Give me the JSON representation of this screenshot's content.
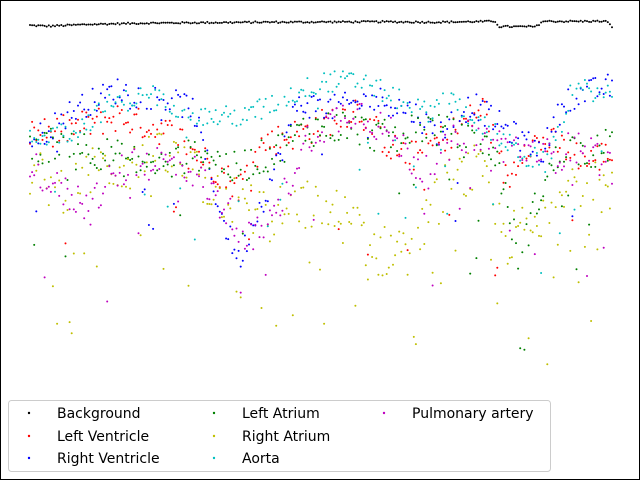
{
  "chart_data": {
    "type": "scatter",
    "title": "",
    "xlabel": "",
    "ylabel": "",
    "xlim": [
      0,
      1000
    ],
    "ylim": [
      0,
      1
    ],
    "grid": false,
    "axes_visible": false,
    "legend_placement": "lower-left",
    "legend_columns": 3,
    "series": [
      {
        "name": "Background",
        "color": "#000000",
        "profile": [
          [
            0,
            0.988
          ],
          [
            30,
            0.986
          ],
          [
            100,
            0.99
          ],
          [
            200,
            0.993
          ],
          [
            400,
            0.995
          ],
          [
            600,
            0.996
          ],
          [
            700,
            0.995
          ],
          [
            800,
            0.997
          ],
          [
            805,
            0.985
          ],
          [
            870,
            0.985
          ],
          [
            880,
            0.997
          ],
          [
            990,
            0.997
          ],
          [
            1000,
            0.985
          ]
        ],
        "noise": 0.002,
        "dropout": 0.0
      },
      {
        "name": "Left Ventricle",
        "color": "#ff0000",
        "profile": [
          [
            0,
            0.74
          ],
          [
            60,
            0.75
          ],
          [
            150,
            0.78
          ],
          [
            250,
            0.74
          ],
          [
            320,
            0.66
          ],
          [
            360,
            0.62
          ],
          [
            400,
            0.72
          ],
          [
            480,
            0.75
          ],
          [
            560,
            0.8
          ],
          [
            620,
            0.71
          ],
          [
            660,
            0.69
          ],
          [
            720,
            0.74
          ],
          [
            780,
            0.8
          ],
          [
            820,
            0.63
          ],
          [
            850,
            0.72
          ],
          [
            900,
            0.72
          ],
          [
            960,
            0.68
          ],
          [
            1000,
            0.7
          ]
        ],
        "noise": 0.035,
        "dropout": 0.05
      },
      {
        "name": "Right Ventricle",
        "color": "#0000ff",
        "profile": [
          [
            0,
            0.72
          ],
          [
            80,
            0.8
          ],
          [
            150,
            0.84
          ],
          [
            230,
            0.82
          ],
          [
            280,
            0.8
          ],
          [
            330,
            0.55
          ],
          [
            360,
            0.45
          ],
          [
            380,
            0.53
          ],
          [
            410,
            0.62
          ],
          [
            460,
            0.81
          ],
          [
            520,
            0.8
          ],
          [
            600,
            0.82
          ],
          [
            660,
            0.79
          ],
          [
            700,
            0.74
          ],
          [
            760,
            0.81
          ],
          [
            820,
            0.75
          ],
          [
            880,
            0.7
          ],
          [
            920,
            0.82
          ],
          [
            970,
            0.84
          ],
          [
            1000,
            0.85
          ]
        ],
        "noise": 0.03,
        "dropout": 0.06
      },
      {
        "name": "Left Atrium",
        "color": "#008000",
        "profile": [
          [
            0,
            0.7
          ],
          [
            60,
            0.73
          ],
          [
            120,
            0.7
          ],
          [
            170,
            0.68
          ],
          [
            230,
            0.67
          ],
          [
            300,
            0.7
          ],
          [
            350,
            0.66
          ],
          [
            420,
            0.7
          ],
          [
            470,
            0.75
          ],
          [
            540,
            0.76
          ],
          [
            620,
            0.73
          ],
          [
            680,
            0.76
          ],
          [
            760,
            0.72
          ],
          [
            800,
            0.7
          ],
          [
            840,
            0.46
          ],
          [
            880,
            0.62
          ],
          [
            920,
            0.72
          ],
          [
            960,
            0.69
          ],
          [
            1000,
            0.72
          ]
        ],
        "noise": 0.04,
        "dropout": 0.08
      },
      {
        "name": "Right Atrium",
        "color": "#bfbf00",
        "profile": [
          [
            0,
            0.65
          ],
          [
            60,
            0.62
          ],
          [
            120,
            0.66
          ],
          [
            180,
            0.67
          ],
          [
            240,
            0.69
          ],
          [
            300,
            0.63
          ],
          [
            360,
            0.58
          ],
          [
            420,
            0.56
          ],
          [
            480,
            0.58
          ],
          [
            540,
            0.55
          ],
          [
            600,
            0.47
          ],
          [
            660,
            0.5
          ],
          [
            720,
            0.63
          ],
          [
            770,
            0.66
          ],
          [
            820,
            0.5
          ],
          [
            880,
            0.55
          ],
          [
            920,
            0.64
          ],
          [
            970,
            0.62
          ],
          [
            1000,
            0.6
          ]
        ],
        "noise": 0.06,
        "dropout": 0.15
      },
      {
        "name": "Aorta",
        "color": "#00bfbf",
        "profile": [
          [
            0,
            0.73
          ],
          [
            80,
            0.75
          ],
          [
            140,
            0.81
          ],
          [
            210,
            0.83
          ],
          [
            260,
            0.8
          ],
          [
            300,
            0.78
          ],
          [
            360,
            0.78
          ],
          [
            420,
            0.81
          ],
          [
            500,
            0.86
          ],
          [
            560,
            0.86
          ],
          [
            620,
            0.83
          ],
          [
            680,
            0.79
          ],
          [
            720,
            0.82
          ],
          [
            800,
            0.74
          ],
          [
            860,
            0.68
          ],
          [
            900,
            0.71
          ],
          [
            930,
            0.84
          ],
          [
            970,
            0.84
          ],
          [
            1000,
            0.83
          ]
        ],
        "noise": 0.025,
        "dropout": 0.15
      },
      {
        "name": "Pulmonary artery",
        "color": "#bf00bf",
        "profile": [
          [
            0,
            0.68
          ],
          [
            40,
            0.62
          ],
          [
            100,
            0.58
          ],
          [
            160,
            0.66
          ],
          [
            220,
            0.68
          ],
          [
            280,
            0.66
          ],
          [
            330,
            0.58
          ],
          [
            380,
            0.5
          ],
          [
            420,
            0.55
          ],
          [
            480,
            0.74
          ],
          [
            560,
            0.8
          ],
          [
            620,
            0.74
          ],
          [
            680,
            0.65
          ],
          [
            740,
            0.74
          ],
          [
            800,
            0.72
          ],
          [
            860,
            0.7
          ],
          [
            900,
            0.69
          ],
          [
            950,
            0.72
          ],
          [
            1000,
            0.66
          ]
        ],
        "noise": 0.04,
        "dropout": 0.08
      }
    ]
  }
}
